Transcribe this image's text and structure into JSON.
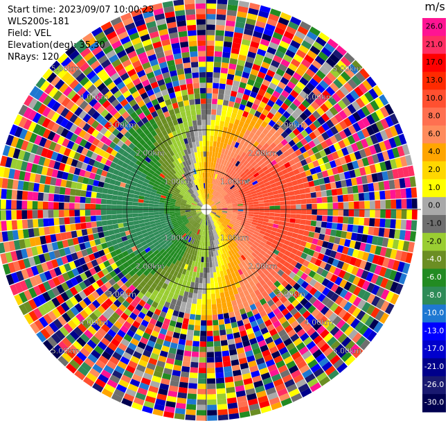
{
  "header": {
    "start_time": "Start time: 2023/09/07 10:00:23",
    "instrument": "WLS200s-181",
    "field": "Field: VEL",
    "elevation": "Elevation(deg): 35.30",
    "nrays": "NRays: 120"
  },
  "colorbar": {
    "unit": "m/s",
    "ticks": [
      "26.0",
      "21.0",
      "17.0",
      "13.0",
      "10.0",
      "8.0",
      "6.0",
      "4.0",
      "2.0",
      "1.0",
      "0.0",
      "-1.0",
      "-2.0",
      "-4.0",
      "-6.0",
      "-8.0",
      "-10.0",
      "-13.0",
      "-17.0",
      "-21.0",
      "-26.0",
      "-30.0"
    ],
    "colors": [
      "#ff1493",
      "#ff2e63",
      "#ff0000",
      "#ff2a00",
      "#ff5030",
      "#ff7050",
      "#ff8c5c",
      "#ffa500",
      "#ffd700",
      "#ffff00",
      "#a9a9a9",
      "#6f6f6f",
      "#9acd32",
      "#6b8e23",
      "#228b22",
      "#2e8b57",
      "#1e78d2",
      "#0000ff",
      "#0000cd",
      "#00008b",
      "#191970",
      "#000050"
    ]
  },
  "chart_data": {
    "type": "heatmap",
    "projection": "polar PPI",
    "field": "VEL",
    "units": "m/s",
    "nrays": 120,
    "range_rings_km": [
      1.0,
      2.0,
      3.0,
      4.0,
      5.0
    ],
    "range_ring_labels": [
      "1.00km",
      "2.00km",
      "3.00km",
      "4.00km",
      "5.00km"
    ],
    "value_scale_min": -30.0,
    "value_scale_max": 26.0,
    "pattern": {
      "direction_positive_deg": 55,
      "direction_negative_deg": 235,
      "max_abs_velocity": 9.5,
      "valid_range_km": 2.6,
      "noise_beyond_km": 3.0
    }
  }
}
